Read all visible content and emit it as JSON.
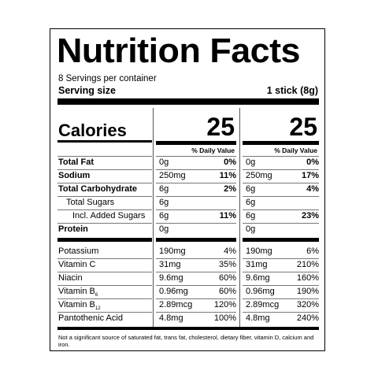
{
  "title": "Nutrition Facts",
  "servings_per_container": "8 Servings per container",
  "serving_size_label": "Serving size",
  "serving_size_value": "1 stick (8g)",
  "calories_label": "Calories",
  "calories_values": [
    "25",
    "25"
  ],
  "daily_value_header": "% Daily Value",
  "nutrients": [
    {
      "name": "Total Fat",
      "bold": true,
      "indent": 0,
      "amounts": [
        "0g",
        "0g"
      ],
      "pcts": [
        "0%",
        "0%"
      ]
    },
    {
      "name": "Sodium",
      "bold": true,
      "indent": 0,
      "amounts": [
        "250mg",
        "250mg"
      ],
      "pcts": [
        "11%",
        "17%"
      ]
    },
    {
      "name": "Total Carbohydrate",
      "bold": true,
      "indent": 0,
      "amounts": [
        "6g",
        "6g"
      ],
      "pcts": [
        "2%",
        "4%"
      ]
    },
    {
      "name": "Total Sugars",
      "bold": false,
      "indent": 1,
      "amounts": [
        "6g",
        "6g"
      ],
      "pcts": [
        "",
        ""
      ]
    },
    {
      "name": "Incl. Added Sugars",
      "bold": false,
      "indent": 2,
      "amounts": [
        "6g",
        "6g"
      ],
      "pcts": [
        "11%",
        "23%"
      ]
    },
    {
      "name": "Protein",
      "bold": true,
      "indent": 0,
      "amounts": [
        "0g",
        "0g"
      ],
      "pcts": [
        "",
        ""
      ]
    }
  ],
  "vitamins": [
    {
      "name": "Potassium",
      "sub": "",
      "amounts": [
        "190mg",
        "190mg"
      ],
      "pcts": [
        "4%",
        "6%"
      ]
    },
    {
      "name": "Vitamin C",
      "sub": "",
      "amounts": [
        "31mg",
        "31mg"
      ],
      "pcts": [
        "35%",
        "210%"
      ]
    },
    {
      "name": "Niacin",
      "sub": "",
      "amounts": [
        "9.6mg",
        "9.6mg"
      ],
      "pcts": [
        "60%",
        "160%"
      ]
    },
    {
      "name": "Vitamin B",
      "sub": "6",
      "amounts": [
        "0.96mg",
        "0.96mg"
      ],
      "pcts": [
        "60%",
        "190%"
      ]
    },
    {
      "name": "Vitamin B",
      "sub": "12",
      "amounts": [
        "2.89mcg",
        "2.89mcg"
      ],
      "pcts": [
        "120%",
        "320%"
      ]
    },
    {
      "name": "Pantothenic Acid",
      "sub": "",
      "amounts": [
        "4.8mg",
        "4.8mg"
      ],
      "pcts": [
        "100%",
        "240%"
      ]
    }
  ],
  "footnote": "Not a significant source of saturated fat, trans fat, cholesterol, dietary fiber, vitamin D, calcium and iron."
}
